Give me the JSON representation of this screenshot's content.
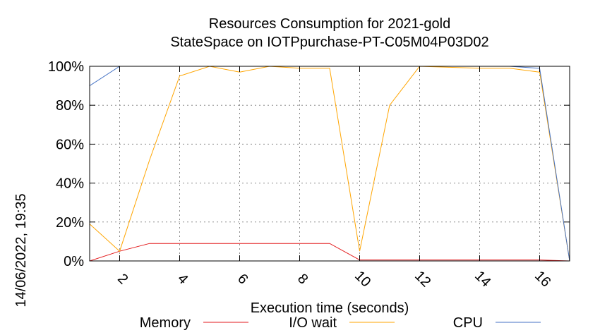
{
  "chart_data": {
    "type": "line",
    "title": "Resources Consumption for 2021-gold",
    "subtitle": "StateSpace on IOTPpurchase-PT-C05M04P03D02",
    "xlabel": "Execution time (seconds)",
    "side_label": "14/06/2022, 19:35",
    "xlim": [
      1,
      17
    ],
    "ylim": [
      0,
      100
    ],
    "x_ticks": [
      2,
      4,
      6,
      8,
      10,
      12,
      14,
      16
    ],
    "y_ticks": [
      0,
      20,
      40,
      60,
      80,
      100
    ],
    "y_tick_labels": [
      "0%",
      "20%",
      "40%",
      "60%",
      "80%",
      "100%"
    ],
    "grid": true,
    "legend_position": "bottom",
    "series": [
      {
        "name": "Memory",
        "color": "#e31a1c",
        "x": [
          1,
          2,
          3,
          4,
          5,
          6,
          7,
          8,
          9,
          10,
          11,
          12,
          13,
          14,
          15,
          16,
          17
        ],
        "y": [
          0,
          5,
          9,
          9,
          9,
          9,
          9,
          9,
          9,
          0.5,
          0.5,
          0.5,
          0.5,
          0.5,
          0.5,
          0.5,
          0
        ]
      },
      {
        "name": "I/O wait",
        "color": "#ffa500",
        "x": [
          1,
          2,
          3,
          4,
          5,
          6,
          7,
          8,
          9,
          10,
          11,
          12,
          13,
          14,
          15,
          16,
          17
        ],
        "y": [
          19,
          5,
          52,
          95,
          100,
          97,
          100,
          99,
          99,
          5,
          80,
          100,
          99.5,
          99,
          99,
          97,
          0
        ]
      },
      {
        "name": "CPU",
        "color": "#4472c4",
        "x": [
          1,
          2,
          3,
          4,
          5,
          6,
          7,
          8,
          9,
          10,
          11,
          12,
          13,
          14,
          15,
          16,
          17
        ],
        "y": [
          90,
          100,
          100,
          100,
          100,
          100,
          100,
          100,
          100,
          100,
          100,
          100,
          100,
          100,
          100,
          99,
          0
        ]
      }
    ]
  }
}
